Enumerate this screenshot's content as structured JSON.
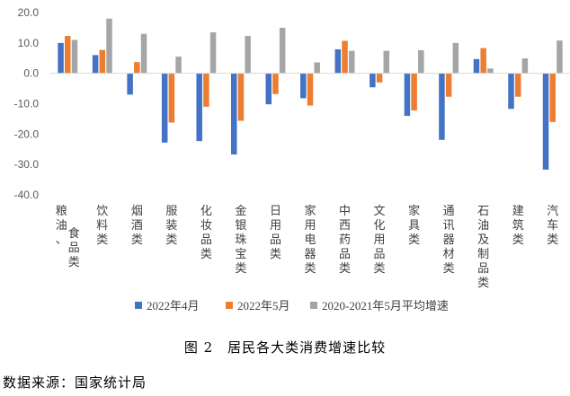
{
  "chart_data": {
    "type": "bar",
    "title": "",
    "xlabel": "",
    "ylabel": "",
    "ylim": [
      -40,
      20
    ],
    "yticks": [
      "20.0",
      "10.0",
      "0.0",
      "-10.0",
      "-20.0",
      "-30.0",
      "-40.0"
    ],
    "grid": false,
    "legend_position": "bottom",
    "categories": [
      "粮油、食品类",
      "饮料类",
      "烟酒类",
      "服装类",
      "化妆品类",
      "金银珠宝类",
      "日用品类",
      "家用电器类",
      "中西药品类",
      "文化用品类",
      "家具类",
      "通讯器材类",
      "石油及制品类",
      "建筑类",
      "汽车类"
    ],
    "series": [
      {
        "name": "2022年4月",
        "color": "#4472C4",
        "values": [
          10.0,
          6.0,
          -7.0,
          -22.8,
          -22.3,
          -26.7,
          -10.2,
          -8.2,
          7.9,
          -4.6,
          -14.0,
          -21.9,
          4.7,
          -11.7,
          -31.7
        ]
      },
      {
        "name": "2022年5月",
        "color": "#ED7D31",
        "values": [
          12.3,
          7.7,
          3.7,
          -16.2,
          -11.0,
          -15.6,
          -6.8,
          -10.6,
          10.7,
          -3.0,
          -12.2,
          -7.7,
          8.3,
          -7.7,
          -16.0
        ]
      },
      {
        "name": "2020-2021年5月平均增速",
        "color": "#A5A5A5",
        "values": [
          11.0,
          18.0,
          13.0,
          5.5,
          13.5,
          12.3,
          15.0,
          3.6,
          7.4,
          7.4,
          7.6,
          10.0,
          1.6,
          4.9,
          10.8
        ]
      }
    ]
  },
  "caption": "图 2　居民各大类消费增速比较",
  "source": "数据来源：国家统计局"
}
